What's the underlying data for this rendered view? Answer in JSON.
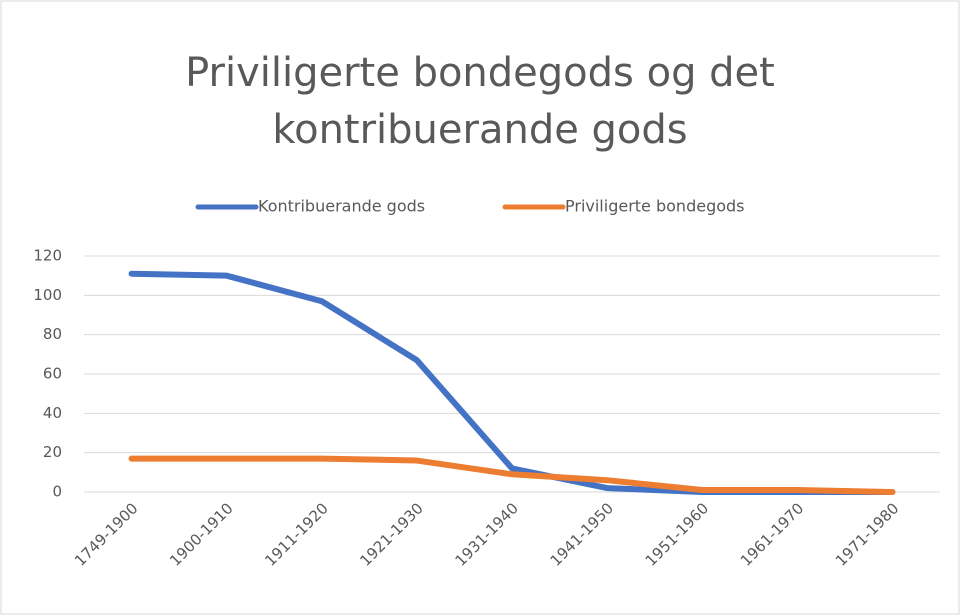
{
  "chart_data": {
    "type": "line",
    "title": "Priviligerte bondegods og det kontribuerande gods",
    "categories": [
      "1749-1900",
      "1900-1910",
      "1911-1920",
      "1921-1930",
      "1931-1940",
      "1941-1950",
      "1951-1960",
      "1961-1970",
      "1971-1980"
    ],
    "series": [
      {
        "name": "Kontribuerande gods",
        "color": "#4472c4",
        "values": [
          111,
          110,
          97,
          67,
          12,
          2,
          0,
          0,
          0
        ]
      },
      {
        "name": "Priviligerte bondegods",
        "color": "#ed7d31",
        "values": [
          17,
          17,
          17,
          16,
          9,
          6,
          1,
          1,
          0
        ]
      }
    ],
    "ylim": [
      0,
      120
    ],
    "yticks": [
      0,
      20,
      40,
      60,
      80,
      100,
      120
    ],
    "grid": true,
    "legend": "top"
  }
}
